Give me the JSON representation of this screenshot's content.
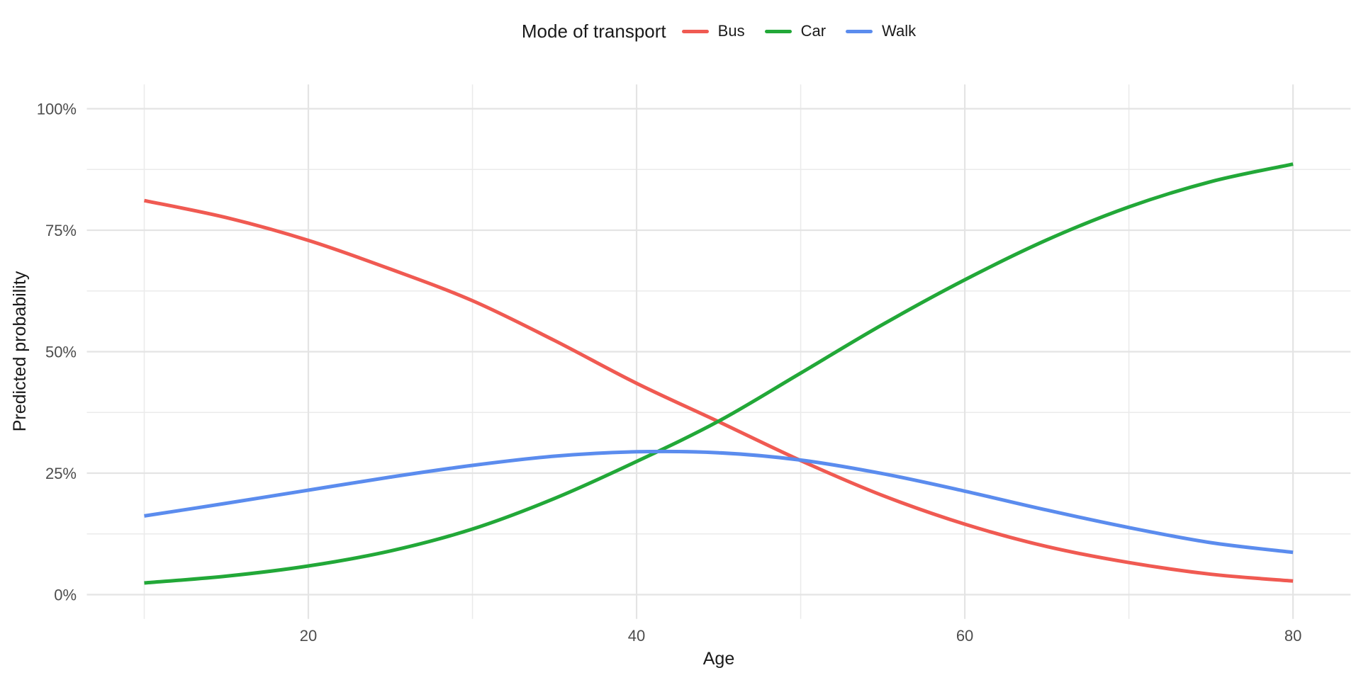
{
  "legend": {
    "title": "Mode of transport"
  },
  "axes": {
    "x_title": "Age",
    "y_title": "Predicted probability"
  },
  "colors": {
    "background": "#FFFFFF",
    "grid_major": "#E4E4E4",
    "grid_minor": "#EBEBEB",
    "tick_text": "#4D4D4D",
    "title_text": "#1A1A1A",
    "bus": "#F05A52",
    "car": "#22A838",
    "walk": "#5B8CEE"
  },
  "chart_data": {
    "type": "line",
    "title": "",
    "legend_title": "Mode of transport",
    "legend_position": "top",
    "xlabel": "Age",
    "ylabel": "Predicted probability",
    "x": [
      10,
      15,
      20,
      25,
      30,
      35,
      40,
      45,
      50,
      55,
      60,
      65,
      70,
      75,
      80
    ],
    "series": [
      {
        "name": "Bus",
        "color": "#F05A52",
        "values": [
          81.1,
          77.6,
          72.9,
          67.0,
          60.5,
          52.3,
          43.5,
          35.6,
          27.6,
          20.4,
          14.5,
          9.9,
          6.6,
          4.2,
          2.8
        ]
      },
      {
        "name": "Car",
        "color": "#22A838",
        "values": [
          2.4,
          3.8,
          5.9,
          9.0,
          13.5,
          19.8,
          27.4,
          35.7,
          45.6,
          55.6,
          64.8,
          73.0,
          79.8,
          85.0,
          88.6
        ]
      },
      {
        "name": "Walk",
        "color": "#5B8CEE",
        "values": [
          16.2,
          18.8,
          21.5,
          24.2,
          26.6,
          28.5,
          29.4,
          29.2,
          27.7,
          24.9,
          21.3,
          17.4,
          13.8,
          10.7,
          8.7
        ]
      }
    ],
    "x_axis": {
      "major_ticks": [
        20,
        40,
        60,
        80
      ],
      "minor_gridlines": [
        10,
        30,
        50,
        70
      ],
      "tick_labels": [
        "20",
        "40",
        "60",
        "80"
      ],
      "range": [
        10,
        80
      ]
    },
    "y_axis": {
      "major_ticks": [
        0,
        25,
        50,
        75,
        100
      ],
      "minor_gridlines": [
        12.5,
        37.5,
        62.5,
        87.5
      ],
      "tick_labels": [
        "0%",
        "25%",
        "50%",
        "75%",
        "100%"
      ],
      "range": [
        0,
        100
      ],
      "unit": "percent"
    },
    "grid": "major-and-minor",
    "panel_background": "white"
  }
}
